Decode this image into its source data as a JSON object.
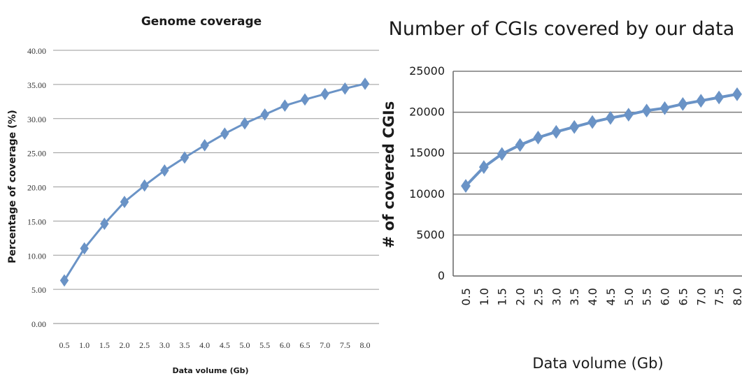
{
  "chart_data": [
    {
      "type": "line",
      "title": "Genome coverage",
      "xlabel": "Data volume (Gb)",
      "ylabel": "Percentage of coverage (%)",
      "ylim": [
        0,
        40
      ],
      "yticks": [
        "0.00",
        "5.00",
        "10.00",
        "15.00",
        "20.00",
        "25.00",
        "30.00",
        "35.00",
        "40.00"
      ],
      "categories": [
        "0.5",
        "1.0",
        "1.5",
        "2.0",
        "2.5",
        "3.0",
        "3.5",
        "4.0",
        "4.5",
        "5.0",
        "5.5",
        "6.0",
        "6.5",
        "7.0",
        "7.5",
        "8.0"
      ],
      "series": [
        {
          "values": [
            6.3,
            11.0,
            14.6,
            17.8,
            20.2,
            22.4,
            24.3,
            26.1,
            27.8,
            29.3,
            30.6,
            31.9,
            32.8,
            33.6,
            34.4,
            35.1
          ]
        }
      ],
      "grid": true,
      "color": "#6a93c6"
    },
    {
      "type": "line",
      "title": "Number of CGIs covered by our data",
      "xlabel": "Data volume (Gb)",
      "ylabel": "# of covered CGIs",
      "ylim": [
        0,
        25000
      ],
      "yticks": [
        "0",
        "5000",
        "10000",
        "15000",
        "20000",
        "25000"
      ],
      "categories": [
        "0.5",
        "1.0",
        "1.5",
        "2.0",
        "2.5",
        "3.0",
        "3.5",
        "4.0",
        "4.5",
        "5.0",
        "5.5",
        "6.0",
        "6.5",
        "7.0",
        "7.5",
        "8.0"
      ],
      "series": [
        {
          "values": [
            11000,
            13300,
            14900,
            16000,
            16900,
            17600,
            18200,
            18800,
            19300,
            19700,
            20200,
            20500,
            21000,
            21400,
            21800,
            22200
          ]
        }
      ],
      "grid": true,
      "color": "#6a93c6"
    }
  ]
}
